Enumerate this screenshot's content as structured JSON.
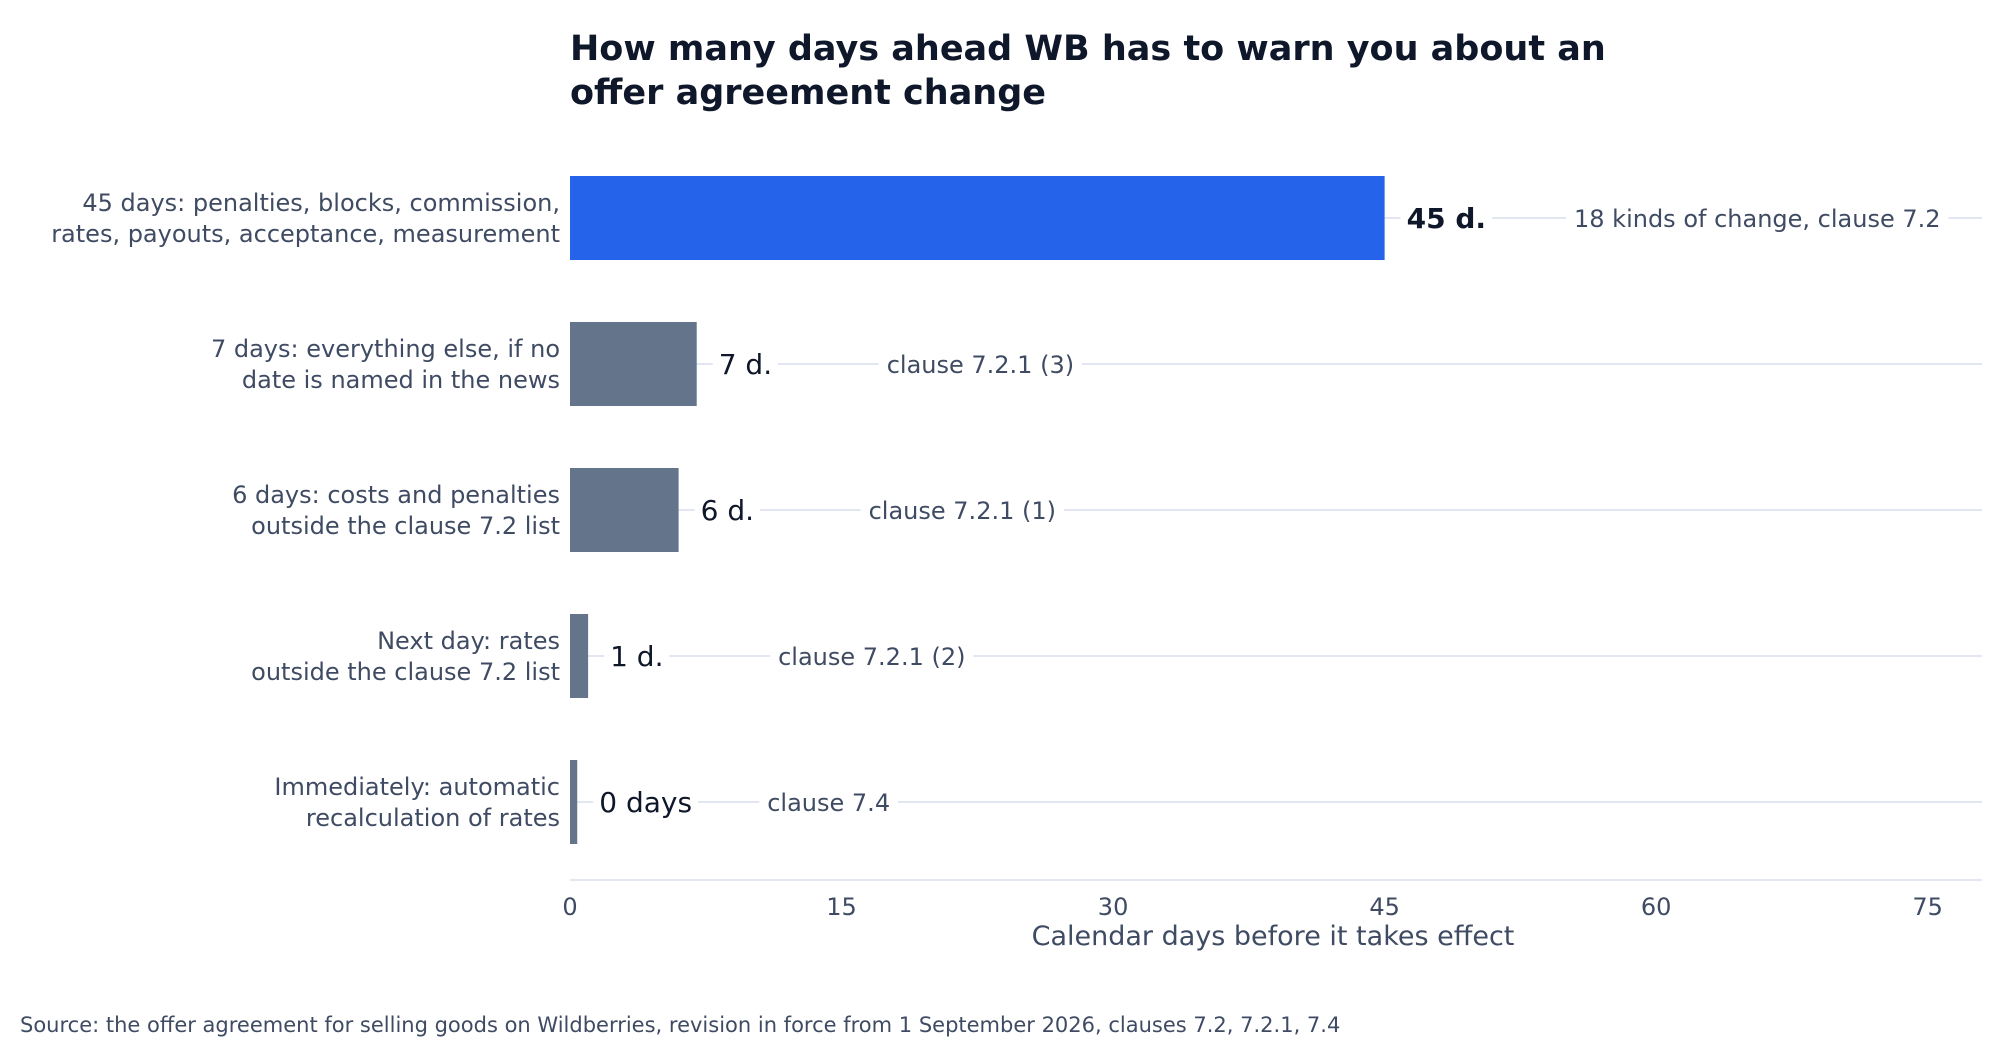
{
  "chart_data": {
    "type": "bar",
    "orientation": "horizontal",
    "title_lines": [
      "How many days ahead WB has to warn you about an",
      "offer agreement change"
    ],
    "categories": [
      [
        "45 days: penalties, blocks, commission,",
        "rates, payouts, acceptance, measurement"
      ],
      [
        "7 days: everything else, if no",
        "date is named in the news"
      ],
      [
        "6 days: costs and penalties",
        "outside the clause 7.2 list"
      ],
      [
        "Next day: rates",
        "outside the clause 7.2 list"
      ],
      [
        "Immediately: automatic",
        "recalculation of rates"
      ]
    ],
    "values": [
      45,
      7,
      6,
      1,
      0.4
    ],
    "value_labels": [
      "45 d.",
      "7 d.",
      "6 d.",
      "1 d.",
      "0 days"
    ],
    "notes": [
      "18 kinds of change, clause 7.2",
      "clause 7.2.1 (3)",
      "clause 7.2.1 (1)",
      "clause 7.2.1 (2)",
      "clause 7.4"
    ],
    "xlabel": "Calendar days before it takes effect",
    "xlim": [
      0,
      78
    ],
    "xticks": [
      "0",
      "15",
      "30",
      "45",
      "60",
      "75"
    ],
    "source": "Source: the offer agreement for selling goods on Wildberries, revision in force from 1 September 2026, clauses 7.2, 7.2.1, 7.4",
    "highlight_color": "#2563eb",
    "bar_color": "#64748b",
    "guide_color": "#e2e6f0",
    "text_color": "#0f172a",
    "muted_text_color": "#3f4b63"
  }
}
